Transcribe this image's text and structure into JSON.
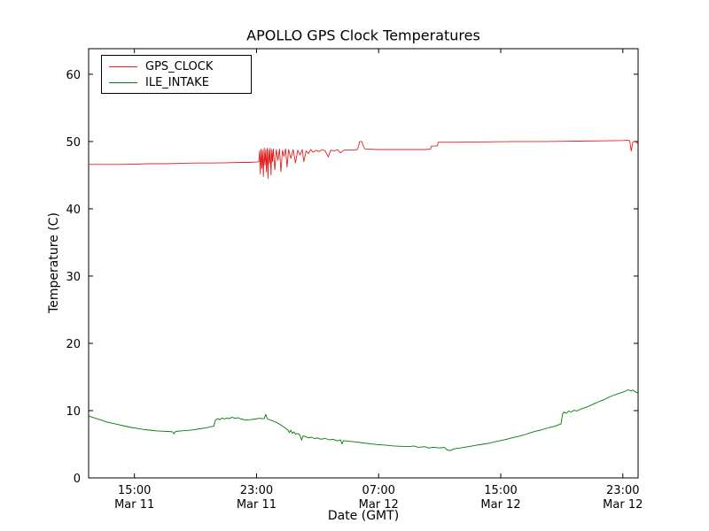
{
  "figure": {
    "title": "APOLLO GPS Clock Temperatures",
    "xlabel": "Date (GMT)",
    "ylabel": "Temperature (C)"
  },
  "chart_data": {
    "type": "line",
    "title": "APOLLO GPS Clock Temperatures",
    "xlabel": "Date (GMT)",
    "ylabel": "Temperature (C)",
    "legend_position": "upper left",
    "grid": false,
    "x_unit": "hours since Mar 11 12:00 GMT",
    "xlim": [
      0,
      36
    ],
    "ylim": [
      0,
      63.8
    ],
    "yticks": [
      0,
      10,
      20,
      30,
      40,
      50,
      60
    ],
    "xticks": [
      {
        "t": 3,
        "time": "15:00",
        "date": "Mar 11"
      },
      {
        "t": 11,
        "time": "23:00",
        "date": "Mar 11"
      },
      {
        "t": 19,
        "time": "07:00",
        "date": "Mar 12"
      },
      {
        "t": 27,
        "time": "15:00",
        "date": "Mar 12"
      },
      {
        "t": 35,
        "time": "23:00",
        "date": "Mar 12"
      }
    ],
    "series": [
      {
        "name": "GPS_CLOCK",
        "color": "#e02020",
        "points": [
          [
            0,
            46.6
          ],
          [
            1,
            46.6
          ],
          [
            2,
            46.6
          ],
          [
            3,
            46.65
          ],
          [
            4,
            46.7
          ],
          [
            5,
            46.7
          ],
          [
            6,
            46.75
          ],
          [
            7,
            46.8
          ],
          [
            8,
            46.8
          ],
          [
            9,
            46.85
          ],
          [
            10,
            46.9
          ],
          [
            10.5,
            46.9
          ],
          [
            11,
            46.95
          ],
          [
            11.15,
            47.0
          ],
          [
            11.2,
            48.6
          ],
          [
            11.25,
            45.2
          ],
          [
            11.3,
            48.9
          ],
          [
            11.35,
            46.0
          ],
          [
            11.4,
            48.7
          ],
          [
            11.45,
            44.8
          ],
          [
            11.5,
            49.0
          ],
          [
            11.55,
            46.5
          ],
          [
            11.6,
            48.8
          ],
          [
            11.65,
            45.5
          ],
          [
            11.7,
            49.0
          ],
          [
            11.75,
            44.5
          ],
          [
            11.8,
            48.8
          ],
          [
            11.85,
            46.8
          ],
          [
            11.9,
            49.0
          ],
          [
            11.95,
            45.0
          ],
          [
            12.0,
            48.8
          ],
          [
            12.05,
            47.0
          ],
          [
            12.1,
            48.9
          ],
          [
            12.2,
            45.8
          ],
          [
            12.3,
            48.8
          ],
          [
            12.4,
            47.2
          ],
          [
            12.5,
            48.9
          ],
          [
            12.6,
            45.5
          ],
          [
            12.7,
            48.7
          ],
          [
            12.8,
            47.8
          ],
          [
            12.9,
            48.9
          ],
          [
            13.0,
            46.2
          ],
          [
            13.1,
            48.8
          ],
          [
            13.25,
            47.5
          ],
          [
            13.4,
            48.8
          ],
          [
            13.55,
            46.8
          ],
          [
            13.7,
            48.7
          ],
          [
            13.85,
            48.0
          ],
          [
            14.0,
            48.8
          ],
          [
            14.1,
            47.0
          ],
          [
            14.25,
            48.6
          ],
          [
            14.4,
            48.2
          ],
          [
            14.55,
            48.8
          ],
          [
            14.7,
            48.4
          ],
          [
            14.9,
            48.7
          ],
          [
            15.1,
            48.5
          ],
          [
            15.3,
            48.8
          ],
          [
            15.5,
            48.6
          ],
          [
            15.7,
            47.7
          ],
          [
            15.85,
            48.7
          ],
          [
            16.1,
            48.6
          ],
          [
            16.3,
            48.8
          ],
          [
            16.5,
            48.3
          ],
          [
            16.7,
            48.7
          ],
          [
            17.0,
            48.75
          ],
          [
            17.4,
            48.75
          ],
          [
            17.6,
            48.8
          ],
          [
            17.7,
            49.4
          ],
          [
            17.75,
            50.0
          ],
          [
            17.9,
            50.0
          ],
          [
            18.0,
            49.3
          ],
          [
            18.1,
            48.9
          ],
          [
            18.4,
            48.85
          ],
          [
            19,
            48.8
          ],
          [
            20,
            48.8
          ],
          [
            21,
            48.8
          ],
          [
            22,
            48.8
          ],
          [
            22.4,
            48.85
          ],
          [
            22.45,
            49.3
          ],
          [
            22.85,
            49.35
          ],
          [
            22.9,
            49.9
          ],
          [
            24,
            49.9
          ],
          [
            26,
            49.95
          ],
          [
            28,
            50.0
          ],
          [
            30,
            50.0
          ],
          [
            32,
            50.05
          ],
          [
            34,
            50.1
          ],
          [
            35.0,
            50.15
          ],
          [
            35.3,
            50.2
          ],
          [
            35.45,
            50.1
          ],
          [
            35.55,
            48.6
          ],
          [
            35.65,
            49.9
          ],
          [
            35.8,
            50.05
          ],
          [
            36,
            49.6
          ]
        ]
      },
      {
        "name": "ILE_INTAKE",
        "color": "#007a00",
        "points": [
          [
            0,
            9.2
          ],
          [
            0.4,
            8.9
          ],
          [
            0.8,
            8.6
          ],
          [
            1.2,
            8.3
          ],
          [
            1.6,
            8.1
          ],
          [
            2,
            7.9
          ],
          [
            2.4,
            7.7
          ],
          [
            2.8,
            7.5
          ],
          [
            3.2,
            7.35
          ],
          [
            3.6,
            7.2
          ],
          [
            4,
            7.1
          ],
          [
            4.4,
            7.0
          ],
          [
            4.8,
            6.95
          ],
          [
            5.2,
            6.9
          ],
          [
            5.5,
            6.85
          ],
          [
            5.6,
            6.55
          ],
          [
            5.7,
            6.9
          ],
          [
            6.1,
            7.0
          ],
          [
            6.5,
            7.05
          ],
          [
            6.9,
            7.15
          ],
          [
            7.3,
            7.3
          ],
          [
            7.7,
            7.45
          ],
          [
            8.0,
            7.6
          ],
          [
            8.2,
            7.7
          ],
          [
            8.3,
            8.55
          ],
          [
            8.45,
            8.8
          ],
          [
            8.6,
            8.65
          ],
          [
            8.75,
            8.9
          ],
          [
            8.9,
            8.75
          ],
          [
            9.05,
            8.9
          ],
          [
            9.2,
            8.8
          ],
          [
            9.4,
            9.0
          ],
          [
            9.6,
            8.85
          ],
          [
            9.8,
            8.95
          ],
          [
            10,
            8.75
          ],
          [
            10.3,
            8.6
          ],
          [
            10.6,
            8.65
          ],
          [
            10.9,
            8.75
          ],
          [
            11.2,
            8.85
          ],
          [
            11.5,
            8.8
          ],
          [
            11.6,
            9.45
          ],
          [
            11.7,
            8.8
          ],
          [
            11.9,
            8.6
          ],
          [
            12.1,
            8.45
          ],
          [
            12.3,
            8.25
          ],
          [
            12.5,
            8.0
          ],
          [
            12.7,
            7.7
          ],
          [
            12.9,
            7.4
          ],
          [
            13.05,
            7.1
          ],
          [
            13.15,
            6.75
          ],
          [
            13.25,
            7.1
          ],
          [
            13.35,
            6.6
          ],
          [
            13.45,
            6.85
          ],
          [
            13.55,
            6.5
          ],
          [
            13.7,
            6.6
          ],
          [
            13.85,
            6.35
          ],
          [
            13.95,
            5.6
          ],
          [
            14.05,
            6.25
          ],
          [
            14.2,
            6.15
          ],
          [
            14.4,
            5.95
          ],
          [
            14.6,
            6.05
          ],
          [
            14.8,
            5.85
          ],
          [
            15.0,
            5.95
          ],
          [
            15.2,
            5.75
          ],
          [
            15.5,
            5.85
          ],
          [
            15.8,
            5.65
          ],
          [
            16.0,
            5.75
          ],
          [
            16.3,
            5.5
          ],
          [
            16.5,
            5.65
          ],
          [
            16.6,
            5.05
          ],
          [
            16.7,
            5.55
          ],
          [
            17.0,
            5.45
          ],
          [
            17.5,
            5.35
          ],
          [
            18.0,
            5.2
          ],
          [
            18.5,
            5.05
          ],
          [
            19.0,
            4.95
          ],
          [
            19.5,
            4.85
          ],
          [
            20,
            4.75
          ],
          [
            20.5,
            4.7
          ],
          [
            21,
            4.65
          ],
          [
            21.3,
            4.75
          ],
          [
            21.6,
            4.55
          ],
          [
            22,
            4.65
          ],
          [
            22.3,
            4.45
          ],
          [
            22.6,
            4.55
          ],
          [
            23,
            4.45
          ],
          [
            23.3,
            4.55
          ],
          [
            23.5,
            4.15
          ],
          [
            23.7,
            4.05
          ],
          [
            23.9,
            4.3
          ],
          [
            24.2,
            4.4
          ],
          [
            24.6,
            4.55
          ],
          [
            25,
            4.7
          ],
          [
            25.4,
            4.85
          ],
          [
            25.8,
            5.0
          ],
          [
            26.2,
            5.15
          ],
          [
            26.6,
            5.35
          ],
          [
            27,
            5.55
          ],
          [
            27.4,
            5.75
          ],
          [
            27.8,
            6.0
          ],
          [
            28.2,
            6.2
          ],
          [
            28.6,
            6.45
          ],
          [
            29,
            6.75
          ],
          [
            29.3,
            6.95
          ],
          [
            29.6,
            7.1
          ],
          [
            29.9,
            7.3
          ],
          [
            30.2,
            7.5
          ],
          [
            30.5,
            7.65
          ],
          [
            30.8,
            7.9
          ],
          [
            30.95,
            8.0
          ],
          [
            31.05,
            9.5
          ],
          [
            31.15,
            9.8
          ],
          [
            31.3,
            9.6
          ],
          [
            31.45,
            9.95
          ],
          [
            31.6,
            9.8
          ],
          [
            31.8,
            10.05
          ],
          [
            32,
            9.95
          ],
          [
            32.2,
            10.2
          ],
          [
            32.4,
            10.35
          ],
          [
            32.6,
            10.5
          ],
          [
            32.8,
            10.7
          ],
          [
            33,
            10.9
          ],
          [
            33.2,
            11.1
          ],
          [
            33.4,
            11.3
          ],
          [
            33.6,
            11.5
          ],
          [
            33.8,
            11.65
          ],
          [
            34,
            11.9
          ],
          [
            34.2,
            12.1
          ],
          [
            34.4,
            12.3
          ],
          [
            34.6,
            12.45
          ],
          [
            34.8,
            12.6
          ],
          [
            35,
            12.75
          ],
          [
            35.2,
            12.95
          ],
          [
            35.35,
            13.1
          ],
          [
            35.5,
            12.95
          ],
          [
            35.65,
            13.05
          ],
          [
            35.8,
            12.8
          ],
          [
            36,
            12.6
          ]
        ]
      }
    ]
  }
}
